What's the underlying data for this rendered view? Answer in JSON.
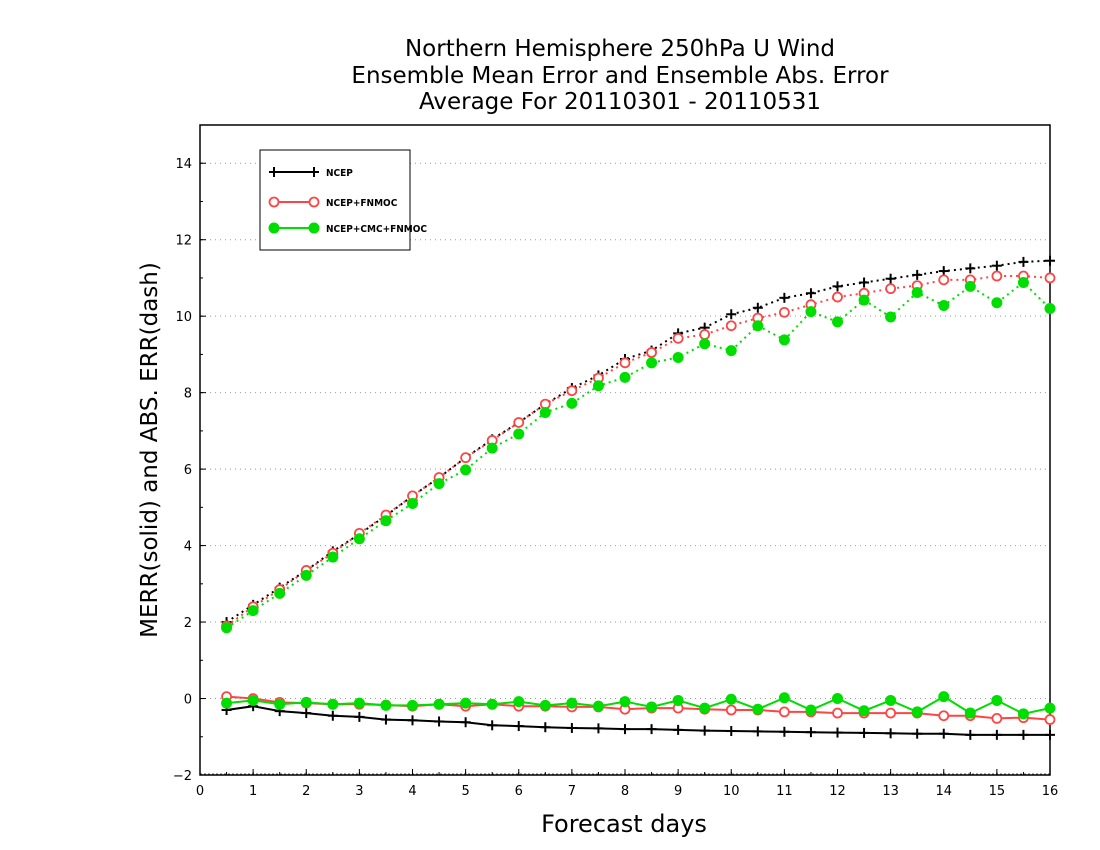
{
  "chart_data": {
    "type": "line",
    "title": [
      "Northern Hemisphere 250hPa U Wind",
      "Ensemble Mean Error and Ensemble Abs. Error",
      "Average For 20110301 - 20110531"
    ],
    "xlabel": "Forecast days",
    "ylabel": "MERR(solid) and ABS. ERR(dash)",
    "xlim": [
      0,
      16
    ],
    "ylim": [
      -2,
      15
    ],
    "xticks": [
      0,
      1,
      2,
      3,
      4,
      5,
      6,
      7,
      8,
      9,
      10,
      11,
      12,
      13,
      14,
      15,
      16
    ],
    "yticks": [
      -2,
      0,
      2,
      4,
      6,
      8,
      10,
      12,
      14
    ],
    "grid": "horizontal dotted",
    "legend_position": "top-left",
    "x": [
      0.5,
      1,
      1.5,
      2,
      2.5,
      3,
      3.5,
      4,
      4.5,
      5,
      5.5,
      6,
      6.5,
      7,
      7.5,
      8,
      8.5,
      9,
      9.5,
      10,
      10.5,
      11,
      11.5,
      12,
      12.5,
      13,
      13.5,
      14,
      14.5,
      15,
      15.5,
      16
    ],
    "series": [
      {
        "name": "NCEP",
        "color": "#000000",
        "marker": "plus",
        "merr": [
          -0.3,
          -0.2,
          -0.33,
          -0.38,
          -0.45,
          -0.48,
          -0.55,
          -0.57,
          -0.6,
          -0.62,
          -0.7,
          -0.72,
          -0.75,
          -0.77,
          -0.78,
          -0.8,
          -0.8,
          -0.82,
          -0.84,
          -0.85,
          -0.86,
          -0.87,
          -0.88,
          -0.89,
          -0.9,
          -0.91,
          -0.92,
          -0.92,
          -0.95,
          -0.95,
          -0.95,
          -0.95
        ],
        "abs_err": [
          2.0,
          2.45,
          2.9,
          3.35,
          3.85,
          4.3,
          4.78,
          5.3,
          5.78,
          6.3,
          6.78,
          7.22,
          7.7,
          8.12,
          8.45,
          8.88,
          9.1,
          9.55,
          9.7,
          10.05,
          10.22,
          10.48,
          10.6,
          10.78,
          10.88,
          10.98,
          11.08,
          11.18,
          11.25,
          11.32,
          11.42,
          11.45
        ]
      },
      {
        "name": "NCEP+FNMOC",
        "color": "#ff4444",
        "marker": "open-circle",
        "merr": [
          0.05,
          0.0,
          -0.1,
          -0.12,
          -0.15,
          -0.15,
          -0.17,
          -0.2,
          -0.15,
          -0.2,
          -0.15,
          -0.2,
          -0.2,
          -0.22,
          -0.22,
          -0.28,
          -0.25,
          -0.25,
          -0.28,
          -0.3,
          -0.3,
          -0.35,
          -0.35,
          -0.38,
          -0.38,
          -0.38,
          -0.38,
          -0.45,
          -0.45,
          -0.52,
          -0.5,
          -0.55
        ],
        "abs_err": [
          1.9,
          2.4,
          2.85,
          3.35,
          3.8,
          4.32,
          4.8,
          5.3,
          5.78,
          6.3,
          6.75,
          7.22,
          7.7,
          8.05,
          8.38,
          8.78,
          9.05,
          9.42,
          9.52,
          9.75,
          9.95,
          10.1,
          10.3,
          10.5,
          10.6,
          10.72,
          10.8,
          10.95,
          10.95,
          11.05,
          11.05,
          11.0
        ]
      },
      {
        "name": "NCEP+CMC+FNMOC",
        "color": "#00dd00",
        "marker": "filled-circle",
        "merr": [
          -0.12,
          -0.05,
          -0.15,
          -0.1,
          -0.15,
          -0.12,
          -0.18,
          -0.18,
          -0.15,
          -0.12,
          -0.15,
          -0.08,
          -0.18,
          -0.12,
          -0.2,
          -0.08,
          -0.22,
          -0.05,
          -0.25,
          -0.02,
          -0.28,
          0.02,
          -0.3,
          0.0,
          -0.32,
          -0.05,
          -0.35,
          0.05,
          -0.38,
          -0.05,
          -0.4,
          -0.25
        ],
        "abs_err": [
          1.85,
          2.3,
          2.75,
          3.22,
          3.7,
          4.18,
          4.65,
          5.1,
          5.62,
          5.98,
          6.55,
          6.92,
          7.48,
          7.72,
          8.18,
          8.4,
          8.78,
          8.92,
          9.28,
          9.1,
          9.75,
          9.38,
          10.12,
          9.85,
          10.42,
          9.98,
          10.62,
          10.28,
          10.78,
          10.35,
          10.88,
          10.2
        ]
      }
    ]
  }
}
